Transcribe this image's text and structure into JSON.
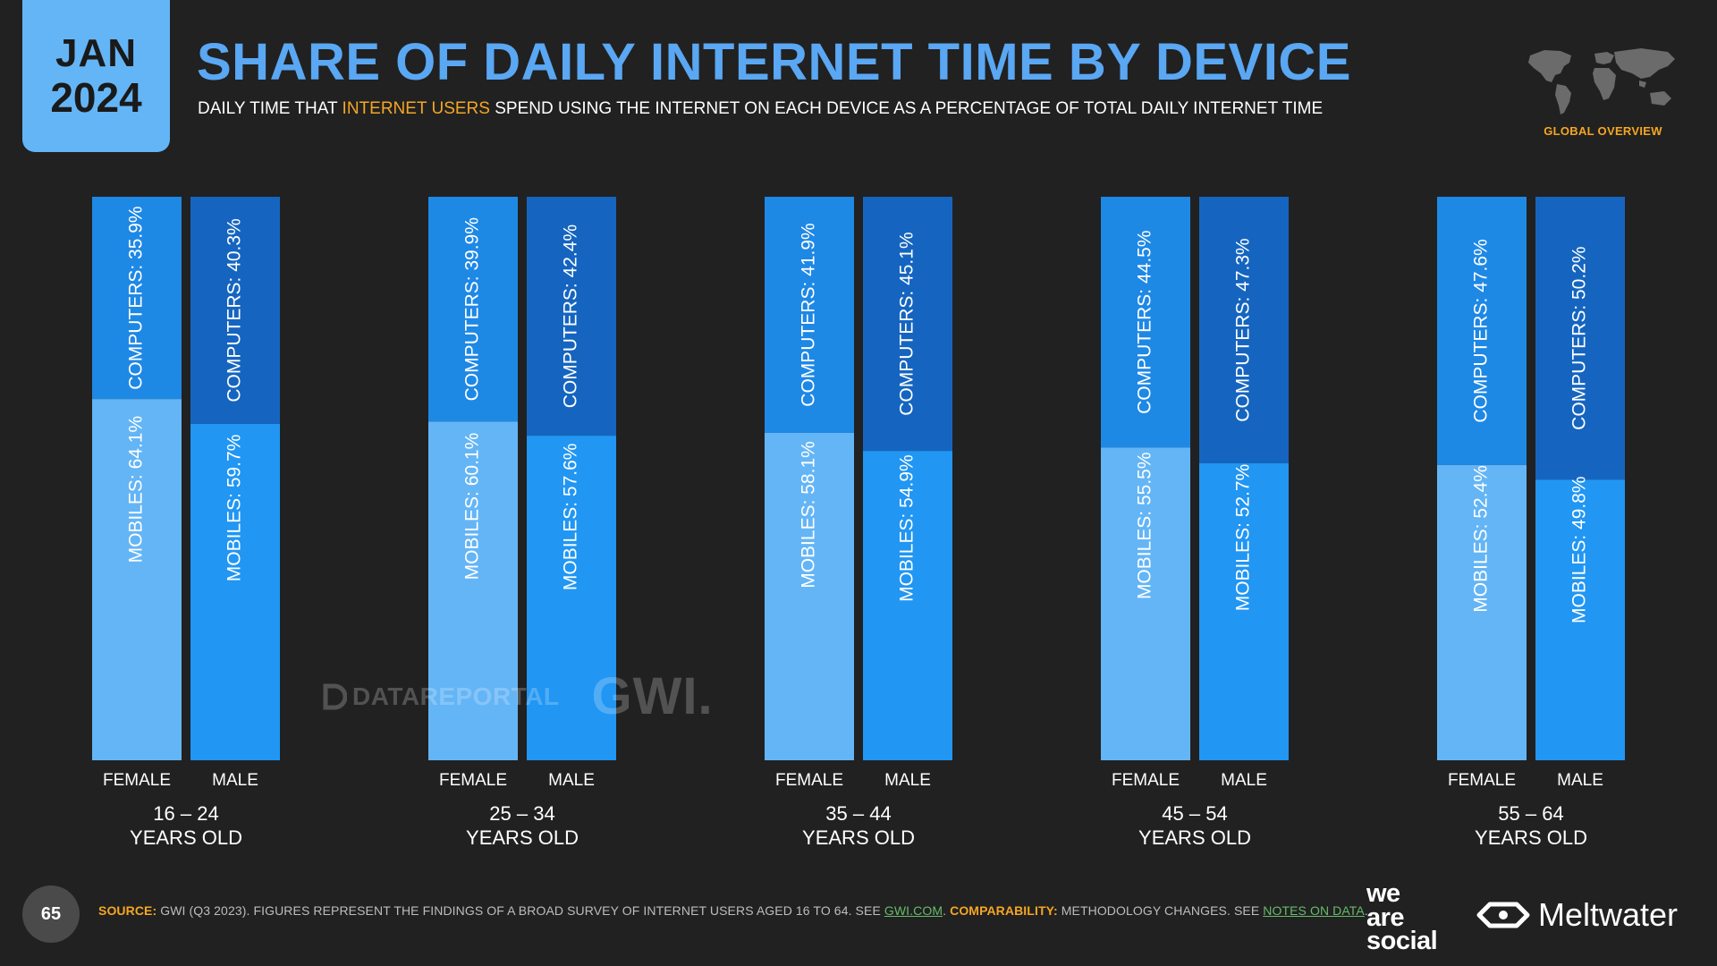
{
  "header": {
    "month": "JAN",
    "year": "2024",
    "title": "SHARE OF DAILY INTERNET TIME BY DEVICE",
    "subtitle_before": "DAILY TIME THAT ",
    "subtitle_highlight": "INTERNET USERS",
    "subtitle_after": " SPEND USING THE INTERNET ON EACH DEVICE AS A PERCENTAGE OF TOTAL DAILY INTERNET TIME",
    "region_label": "GLOBAL OVERVIEW"
  },
  "colors": {
    "mobiles_female": "#64B5F6",
    "computers_female": "#1E88E5",
    "mobiles_male": "#2196F3",
    "computers_male": "#1565C0",
    "title": "#5AA7F3",
    "accent": "#F5A623"
  },
  "chart_data": {
    "type": "bar",
    "stacked": true,
    "orientation": "vertical",
    "unit": "%",
    "ylim": [
      0,
      100
    ],
    "groups": [
      {
        "label_line1": "16 – 24",
        "label_line2": "YEARS OLD",
        "bars": [
          {
            "label": "FEMALE",
            "mobiles": 64.1,
            "computers": 35.9
          },
          {
            "label": "MALE",
            "mobiles": 59.7,
            "computers": 40.3
          }
        ]
      },
      {
        "label_line1": "25 – 34",
        "label_line2": "YEARS OLD",
        "bars": [
          {
            "label": "FEMALE",
            "mobiles": 60.1,
            "computers": 39.9
          },
          {
            "label": "MALE",
            "mobiles": 57.6,
            "computers": 42.4
          }
        ]
      },
      {
        "label_line1": "35 – 44",
        "label_line2": "YEARS OLD",
        "bars": [
          {
            "label": "FEMALE",
            "mobiles": 58.1,
            "computers": 41.9
          },
          {
            "label": "MALE",
            "mobiles": 54.9,
            "computers": 45.1
          }
        ]
      },
      {
        "label_line1": "45 – 54",
        "label_line2": "YEARS OLD",
        "bars": [
          {
            "label": "FEMALE",
            "mobiles": 55.5,
            "computers": 44.5
          },
          {
            "label": "MALE",
            "mobiles": 52.7,
            "computers": 47.3
          }
        ]
      },
      {
        "label_line1": "55 – 64",
        "label_line2": "YEARS OLD",
        "bars": [
          {
            "label": "FEMALE",
            "mobiles": 52.4,
            "computers": 47.6
          },
          {
            "label": "MALE",
            "mobiles": 49.8,
            "computers": 50.2
          }
        ]
      }
    ],
    "segment_label_mobiles": "MOBILES",
    "segment_label_computers": "COMPUTERS"
  },
  "watermark": {
    "datareportal": "DATAREPORTAL",
    "gwi": "GWI."
  },
  "footer": {
    "page_number": "65",
    "source_key": "SOURCE:",
    "source_text": " GWI (Q3 2023). FIGURES REPRESENT THE FINDINGS OF A BROAD SURVEY OF INTERNET USERS AGED 16 TO 64. SEE ",
    "source_link": "GWI.COM",
    "source_sep": ". ",
    "comparability_key": "COMPARABILITY:",
    "comparability_text": " METHODOLOGY CHANGES. SEE ",
    "comparability_link": "NOTES ON DATA",
    "comparability_end": ".",
    "brand_line1": "we",
    "brand_line2": "are",
    "brand_line3": "social",
    "brand2": "Meltwater"
  }
}
